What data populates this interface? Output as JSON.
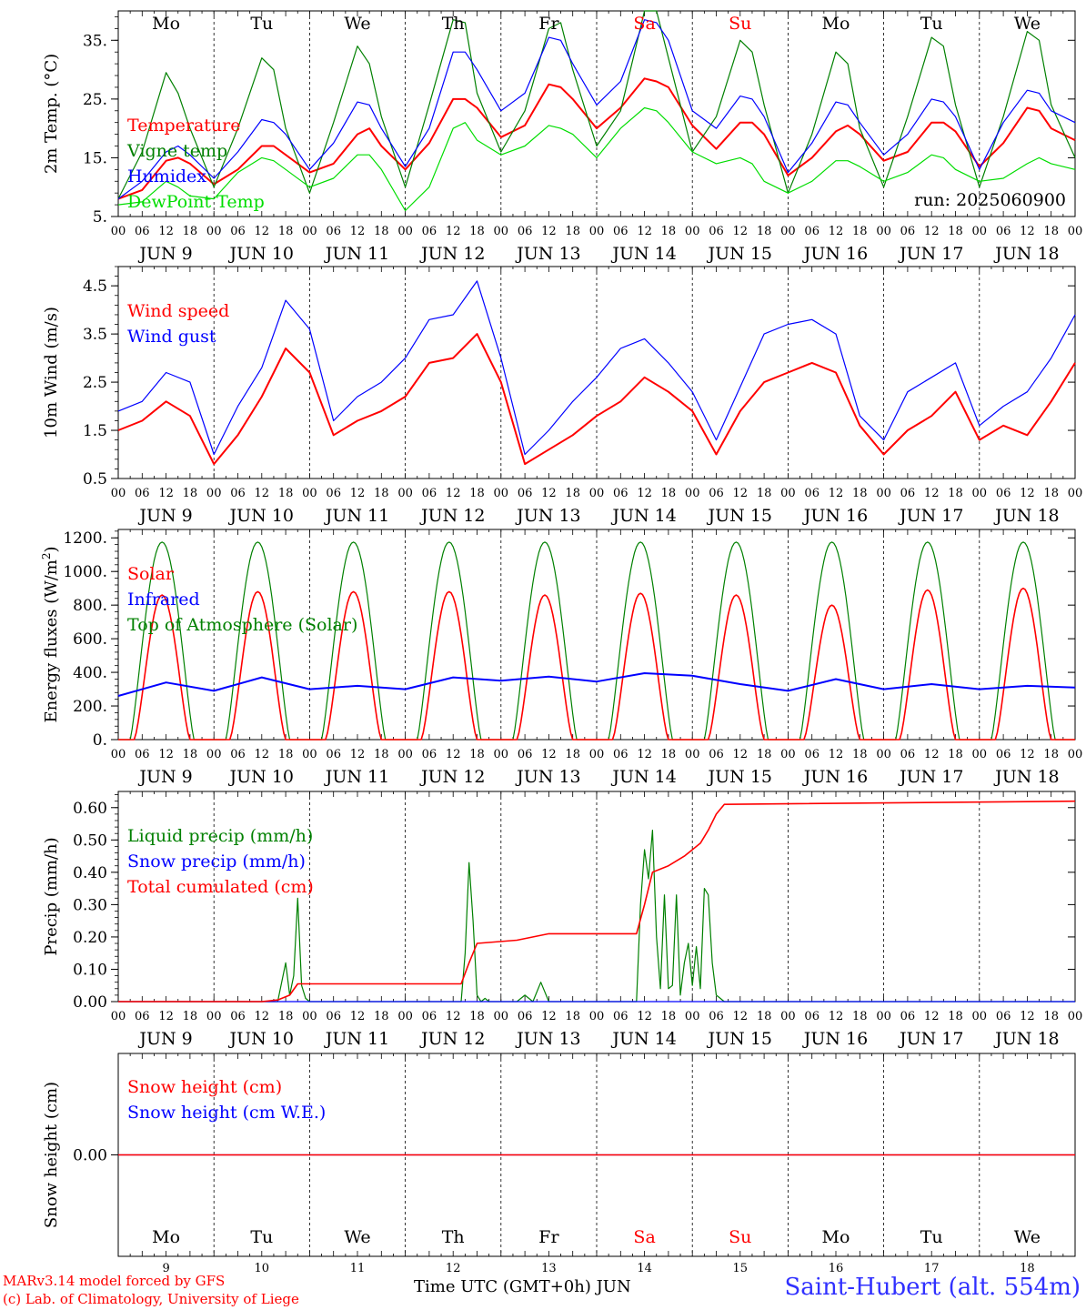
{
  "colors": {
    "red": "#ff0000",
    "green": "#008000",
    "lightgreen": "#00dd00",
    "blue": "#0000ff",
    "black": "#000000",
    "weekend": "#ff0000"
  },
  "footer": {
    "credit_line1": "MARv3.14 model forced by GFS",
    "credit_line2": "(c) Lab. of Climatology, University of Liege",
    "time_label": "Time UTC (GMT+0h) JUN",
    "station": "Saint-Hubert (alt. 554m)"
  },
  "chart_data": [
    {
      "type": "line",
      "ylabel": "2m Temp. (°C)",
      "ylim": [
        5,
        40
      ],
      "yticks": [
        5,
        15,
        25,
        35
      ],
      "ytick_labels": [
        "5.",
        "15.",
        "25.",
        "35."
      ],
      "day_names": [
        "Mo",
        "Tu",
        "We",
        "Th",
        "Fr",
        "Sa",
        "Su",
        "Mo",
        "Tu",
        "We"
      ],
      "weekend_days": [
        5,
        6
      ],
      "annotation": "run: 2025060900",
      "series_hours": [
        0,
        6,
        12,
        15,
        18,
        24,
        30,
        36,
        39,
        42,
        48,
        54,
        60,
        63,
        66,
        72,
        78,
        84,
        87,
        90,
        96,
        102,
        108,
        111,
        114,
        120,
        126,
        132,
        135,
        138,
        144,
        150,
        156,
        159,
        162,
        168,
        174,
        180,
        183,
        186,
        192,
        198,
        204,
        207,
        210,
        216,
        222,
        228,
        231,
        234,
        240
      ],
      "series": [
        {
          "name": "Temperature",
          "color": "#ff0000",
          "width": 2,
          "values": [
            8,
            9.5,
            14.5,
            15,
            14,
            10.5,
            13,
            17,
            17,
            15.5,
            12.5,
            14,
            19,
            20,
            17,
            13,
            17.5,
            25,
            25,
            23.5,
            18.5,
            20.5,
            27.5,
            27,
            25,
            20,
            23.5,
            28.5,
            28,
            27,
            20.5,
            16.5,
            21,
            21,
            19,
            12,
            15,
            19.5,
            20.5,
            19,
            14.5,
            16,
            21,
            21,
            19.5,
            13.5,
            17.5,
            23.5,
            23,
            20,
            18
          ]
        },
        {
          "name": "Vigne temp",
          "color": "#008000",
          "width": 1.2,
          "values": [
            8,
            16,
            29.5,
            26,
            20,
            10,
            20,
            32,
            30,
            20,
            9,
            21,
            34,
            31,
            22,
            10,
            24,
            38.5,
            38,
            26,
            16,
            23,
            37,
            38,
            30,
            17,
            23,
            40,
            40,
            32,
            16,
            22,
            35,
            33,
            24,
            9,
            19,
            33,
            31,
            20,
            10,
            22,
            35.5,
            34,
            24,
            10,
            22,
            36.5,
            35,
            24,
            15
          ]
        },
        {
          "name": "Humidex",
          "color": "#0000ff",
          "width": 1.2,
          "values": [
            8,
            11,
            16,
            17,
            15.5,
            11.5,
            16,
            21.5,
            21,
            19,
            13,
            17.5,
            24.5,
            24,
            20,
            13.5,
            20,
            33,
            33,
            30,
            23,
            26,
            35.5,
            35,
            31,
            24,
            28,
            38.5,
            38,
            35,
            23,
            20,
            25.5,
            25,
            22,
            12.5,
            17.5,
            24.5,
            24,
            21,
            15.5,
            19,
            25,
            24.5,
            22,
            13,
            21,
            26.5,
            26,
            23,
            21
          ]
        },
        {
          "name": "DewPoint Temp",
          "color": "#00dd00",
          "width": 1.2,
          "values": [
            7,
            7.5,
            11,
            10,
            8.5,
            8,
            12.5,
            15,
            14.5,
            13,
            10,
            11.5,
            15.5,
            15.5,
            13,
            6,
            10,
            20,
            21,
            18,
            15.5,
            17,
            20.5,
            20,
            19,
            15,
            20,
            23.5,
            23,
            21,
            16,
            14,
            15,
            14,
            11,
            9,
            11,
            14.5,
            14.5,
            13.5,
            11,
            12.5,
            15.5,
            15,
            13,
            11,
            11.5,
            14,
            15,
            14,
            13
          ]
        }
      ]
    },
    {
      "type": "line",
      "ylabel": "10m Wind (m/s)",
      "ylim": [
        0.5,
        4.9
      ],
      "yticks": [
        0.5,
        1.5,
        2.5,
        3.5,
        4.5
      ],
      "ytick_labels": [
        "0.5",
        "1.5",
        "2.5",
        "3.5",
        "4.5"
      ],
      "series_hours": [
        0,
        6,
        12,
        18,
        24,
        30,
        36,
        42,
        48,
        54,
        60,
        66,
        72,
        78,
        84,
        90,
        96,
        102,
        108,
        114,
        120,
        126,
        132,
        138,
        144,
        150,
        156,
        162,
        168,
        174,
        180,
        186,
        192,
        198,
        204,
        210,
        216,
        222,
        228,
        234,
        240
      ],
      "series": [
        {
          "name": "Wind speed",
          "color": "#ff0000",
          "width": 2,
          "values": [
            1.5,
            1.7,
            2.1,
            1.8,
            0.8,
            1.4,
            2.2,
            3.2,
            2.7,
            1.4,
            1.7,
            1.9,
            2.2,
            2.9,
            3.0,
            3.5,
            2.5,
            0.8,
            1.1,
            1.4,
            1.8,
            2.1,
            2.6,
            2.3,
            1.9,
            1.0,
            1.9,
            2.5,
            2.7,
            2.9,
            2.7,
            1.6,
            1.0,
            1.5,
            1.8,
            2.3,
            1.3,
            1.6,
            1.4,
            2.1,
            2.9
          ]
        },
        {
          "name": "Wind gust",
          "color": "#0000ff",
          "width": 1.2,
          "values": [
            1.9,
            2.1,
            2.7,
            2.5,
            1.0,
            2.0,
            2.8,
            4.2,
            3.6,
            1.7,
            2.2,
            2.5,
            3.0,
            3.8,
            3.9,
            4.6,
            3.0,
            1.0,
            1.5,
            2.1,
            2.6,
            3.2,
            3.4,
            2.9,
            2.3,
            1.3,
            2.4,
            3.5,
            3.7,
            3.8,
            3.5,
            1.8,
            1.3,
            2.3,
            2.6,
            2.9,
            1.6,
            2.0,
            2.3,
            3.0,
            3.9
          ]
        }
      ]
    },
    {
      "type": "line",
      "ylabel": "Energy fluxes (W/m²)",
      "ylim": [
        0,
        1250
      ],
      "yticks": [
        0,
        200,
        400,
        600,
        800,
        1000,
        1200
      ],
      "ytick_labels": [
        "0.",
        "200.",
        "400.",
        "600.",
        "800.",
        "1000.",
        "1200."
      ],
      "series": [
        {
          "name": "Solar",
          "color": "#ff0000",
          "width": 1.6,
          "peaks": [
            860,
            880,
            880,
            880,
            860,
            870,
            860,
            800,
            890,
            900
          ]
        },
        {
          "name": "Infrared",
          "color": "#0000ff",
          "width": 2,
          "hours": [
            0,
            12,
            24,
            36,
            48,
            60,
            72,
            84,
            96,
            108,
            120,
            132,
            144,
            156,
            168,
            180,
            192,
            204,
            216,
            228,
            240
          ],
          "values": [
            260,
            340,
            290,
            370,
            300,
            320,
            300,
            370,
            350,
            375,
            345,
            395,
            380,
            330,
            290,
            360,
            300,
            330,
            300,
            320,
            310
          ]
        },
        {
          "name": "Top of Atmosphere (Solar)",
          "color": "#008000",
          "width": 1.2,
          "peak": 1175
        }
      ]
    },
    {
      "type": "line",
      "ylabel": "Precip (mm/h)",
      "ylim": [
        0,
        0.65
      ],
      "yticks": [
        0,
        0.1,
        0.2,
        0.3,
        0.4,
        0.5,
        0.6
      ],
      "ytick_labels": [
        "0.00",
        "0.10",
        "0.20",
        "0.30",
        "0.40",
        "0.50",
        "0.60"
      ],
      "series": [
        {
          "name": "Liquid precip (mm/h)",
          "color": "#008000",
          "width": 1.2,
          "hours": [
            0,
            40,
            42,
            43,
            44,
            45,
            46,
            47,
            48,
            86,
            87,
            88,
            89,
            90,
            91,
            92,
            93,
            94,
            100,
            102,
            104,
            106,
            108,
            110,
            130,
            131,
            132,
            133,
            134,
            135,
            136,
            137,
            138,
            139,
            140,
            141,
            142,
            143,
            144,
            145,
            146,
            147,
            148,
            149,
            150,
            151,
            152,
            153,
            154,
            240
          ],
          "values": [
            0,
            0,
            0.12,
            0.02,
            0.08,
            0.32,
            0.05,
            0.01,
            0,
            0,
            0.15,
            0.43,
            0.25,
            0.02,
            0,
            0.01,
            0,
            0,
            0,
            0.02,
            0,
            0.06,
            0,
            0,
            0,
            0.3,
            0.47,
            0.38,
            0.53,
            0.2,
            0.04,
            0.33,
            0.04,
            0.05,
            0.33,
            0.02,
            0.12,
            0.18,
            0.05,
            0.17,
            0.04,
            0.35,
            0.33,
            0.12,
            0.02,
            0.01,
            0,
            0,
            0,
            0
          ]
        },
        {
          "name": "Snow precip (mm/h)",
          "color": "#0000ff",
          "width": 1.2,
          "hours": [
            0,
            240
          ],
          "values": [
            0,
            0
          ]
        },
        {
          "name": "Total cumulated (cm)",
          "color": "#ff0000",
          "width": 1.6,
          "hours": [
            0,
            36,
            40,
            43,
            45,
            48,
            86,
            88,
            90,
            100,
            108,
            110,
            130,
            132,
            134,
            138,
            142,
            146,
            148,
            150,
            152,
            240
          ],
          "values": [
            0,
            0,
            0.005,
            0.02,
            0.055,
            0.055,
            0.055,
            0.12,
            0.18,
            0.19,
            0.21,
            0.21,
            0.21,
            0.3,
            0.4,
            0.42,
            0.45,
            0.49,
            0.53,
            0.58,
            0.61,
            0.62
          ]
        }
      ]
    },
    {
      "type": "line",
      "ylabel": "Snow height (cm)",
      "ylim": [
        -1,
        1
      ],
      "yticks": [
        0
      ],
      "ytick_labels": [
        "0.00"
      ],
      "day_names": [
        "Mo",
        "Tu",
        "We",
        "Th",
        "Fr",
        "Sa",
        "Su",
        "Mo",
        "Tu",
        "We"
      ],
      "weekend_days": [
        5,
        6
      ],
      "day_numbers": [
        "9",
        "10",
        "11",
        "12",
        "13",
        "14",
        "15",
        "16",
        "17",
        "18"
      ],
      "series": [
        {
          "name": "Snow height (cm)",
          "color": "#ff0000",
          "width": 1.5,
          "hours": [
            0,
            240
          ],
          "values": [
            0,
            0
          ]
        },
        {
          "name": "Snow height (cm W.E.)",
          "color": "#0000ff",
          "width": 1.2,
          "hours": [
            0,
            240
          ],
          "values": [
            0,
            0
          ]
        }
      ]
    }
  ],
  "x_axis": {
    "hour_labels": [
      "00",
      "06",
      "12",
      "18"
    ],
    "final_hour_label": "00",
    "date_labels": [
      "JUN  9",
      "JUN 10",
      "JUN 11",
      "JUN 12",
      "JUN 13",
      "JUN 14",
      "JUN 15",
      "JUN 16",
      "JUN 17",
      "JUN 18"
    ]
  }
}
